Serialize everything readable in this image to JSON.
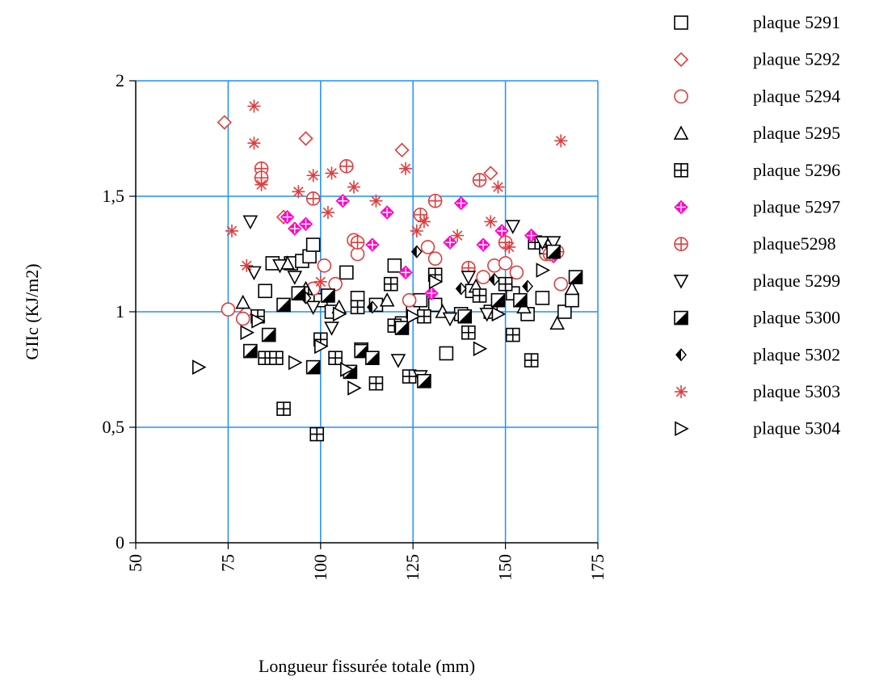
{
  "chart_data": {
    "type": "scatter",
    "xlabel": "Longueur fissurée totale (mm)",
    "ylabel": "GIIc (KJ/m2)",
    "xlim": [
      50,
      175
    ],
    "ylim": [
      0,
      2
    ],
    "xticks": [
      50,
      75,
      100,
      125,
      150,
      175
    ],
    "yticks": [
      0,
      0.5,
      1,
      1.5,
      2
    ],
    "x_tick_labels": [
      "50",
      "75",
      "100",
      "125",
      "150",
      "175"
    ],
    "y_tick_labels": [
      "0",
      "0,5",
      "1",
      "1,5",
      "2"
    ],
    "grid": true,
    "grid_color": "#1e90ff",
    "legend_position": "right",
    "series": [
      {
        "name": "plaque 5291",
        "marker": "square",
        "color": "#000000",
        "points": [
          [
            85,
            1.09
          ],
          [
            87,
            1.21
          ],
          [
            92,
            1.21
          ],
          [
            95,
            1.22
          ],
          [
            97,
            1.24
          ],
          [
            98,
            1.29
          ],
          [
            100,
            1.05
          ],
          [
            103,
            1.0
          ],
          [
            107,
            1.17
          ],
          [
            110,
            1.06
          ],
          [
            115,
            1.03
          ],
          [
            120,
            1.2
          ],
          [
            122,
            0.95
          ],
          [
            125,
            1.0
          ],
          [
            127,
            1.05
          ],
          [
            131,
            1.03
          ],
          [
            134,
            0.82
          ],
          [
            138,
            0.99
          ],
          [
            141,
            1.09
          ],
          [
            146,
            1.0
          ],
          [
            152,
            1.08
          ],
          [
            156,
            0.99
          ],
          [
            160,
            1.06
          ],
          [
            166,
            1.0
          ],
          [
            168,
            1.05
          ]
        ]
      },
      {
        "name": "plaque 5292",
        "marker": "diamond",
        "color": "#e03c3c",
        "points": [
          [
            74,
            1.82
          ],
          [
            96,
            1.75
          ],
          [
            122,
            1.7
          ],
          [
            146,
            1.6
          ],
          [
            80,
            1.0
          ],
          [
            90,
            1.41
          ]
        ]
      },
      {
        "name": "plaque 5294",
        "marker": "circle",
        "color": "#e03c3c",
        "points": [
          [
            75,
            1.01
          ],
          [
            79,
            0.97
          ],
          [
            98,
            1.1
          ],
          [
            101,
            1.2
          ],
          [
            104,
            1.12
          ],
          [
            109,
            1.31
          ],
          [
            110,
            1.25
          ],
          [
            124,
            1.05
          ],
          [
            129,
            1.28
          ],
          [
            131,
            1.23
          ],
          [
            144,
            1.15
          ],
          [
            147,
            1.2
          ],
          [
            150,
            1.21
          ],
          [
            153,
            1.17
          ],
          [
            161,
            1.25
          ],
          [
            165,
            1.12
          ]
        ]
      },
      {
        "name": "plaque 5295",
        "marker": "triangle-up",
        "color": "#000000",
        "points": [
          [
            79,
            1.04
          ],
          [
            91,
            1.21
          ],
          [
            96,
            1.1
          ],
          [
            105,
            1.02
          ],
          [
            118,
            1.05
          ],
          [
            133,
            1.0
          ],
          [
            142,
            1.11
          ],
          [
            155,
            1.02
          ],
          [
            164,
            0.95
          ],
          [
            168,
            1.1
          ]
        ]
      },
      {
        "name": "plaque 5296",
        "marker": "square-cross",
        "color": "#000000",
        "points": [
          [
            83,
            0.98
          ],
          [
            85,
            0.8
          ],
          [
            88,
            0.8
          ],
          [
            90,
            0.58
          ],
          [
            95,
            1.08
          ],
          [
            99,
            0.47
          ],
          [
            100,
            0.88
          ],
          [
            104,
            0.8
          ],
          [
            110,
            1.02
          ],
          [
            115,
            0.69
          ],
          [
            119,
            1.12
          ],
          [
            120,
            0.94
          ],
          [
            124,
            0.72
          ],
          [
            128,
            0.98
          ],
          [
            131,
            1.16
          ],
          [
            140,
            0.91
          ],
          [
            143,
            1.07
          ],
          [
            150,
            1.12
          ],
          [
            152,
            0.9
          ],
          [
            157,
            0.79
          ],
          [
            158,
            1.3
          ],
          [
            161,
            1.28
          ]
        ]
      },
      {
        "name": "plaque 5297",
        "marker": "diamond-cross",
        "color": "#ff00cc",
        "points": [
          [
            91,
            1.41
          ],
          [
            93,
            1.36
          ],
          [
            96,
            1.38
          ],
          [
            106,
            1.48
          ],
          [
            114,
            1.29
          ],
          [
            118,
            1.43
          ],
          [
            123,
            1.17
          ],
          [
            130,
            1.08
          ],
          [
            135,
            1.3
          ],
          [
            138,
            1.47
          ],
          [
            144,
            1.29
          ],
          [
            149,
            1.35
          ],
          [
            157,
            1.33
          ],
          [
            163,
            1.24
          ]
        ]
      },
      {
        "name": "plaque5298",
        "marker": "circle-cross",
        "color": "#e03c3c",
        "points": [
          [
            84,
            1.62
          ],
          [
            84,
            1.58
          ],
          [
            98,
            1.49
          ],
          [
            107,
            1.63
          ],
          [
            110,
            1.3
          ],
          [
            127,
            1.42
          ],
          [
            131,
            1.48
          ],
          [
            140,
            1.19
          ],
          [
            143,
            1.57
          ],
          [
            150,
            1.3
          ],
          [
            162,
            1.25
          ],
          [
            164,
            1.26
          ]
        ]
      },
      {
        "name": "plaque 5299",
        "marker": "triangle-down",
        "color": "#000000",
        "points": [
          [
            81,
            1.39
          ],
          [
            82,
            1.17
          ],
          [
            89,
            1.2
          ],
          [
            93,
            1.15
          ],
          [
            98,
            1.02
          ],
          [
            103,
            0.93
          ],
          [
            111,
            0.84
          ],
          [
            121,
            0.79
          ],
          [
            127,
            0.72
          ],
          [
            135,
            0.97
          ],
          [
            140,
            1.15
          ],
          [
            145,
            0.99
          ],
          [
            152,
            1.37
          ],
          [
            160,
            1.3
          ],
          [
            163,
            1.3
          ]
        ]
      },
      {
        "name": "plaque 5300",
        "marker": "square-half",
        "color": "#000000",
        "points": [
          [
            81,
            0.83
          ],
          [
            86,
            0.9
          ],
          [
            90,
            1.03
          ],
          [
            94,
            1.08
          ],
          [
            98,
            0.76
          ],
          [
            102,
            1.07
          ],
          [
            108,
            0.74
          ],
          [
            111,
            0.83
          ],
          [
            114,
            0.8
          ],
          [
            122,
            0.93
          ],
          [
            128,
            0.7
          ],
          [
            139,
            0.98
          ],
          [
            148,
            1.05
          ],
          [
            154,
            1.05
          ],
          [
            163,
            1.26
          ],
          [
            169,
            1.15
          ]
        ]
      },
      {
        "name": "plaque 5302",
        "marker": "diamond-half",
        "color": "#000000",
        "points": [
          [
            96,
            1.06
          ],
          [
            114,
            1.02
          ],
          [
            126,
            1.26
          ],
          [
            138,
            1.1
          ],
          [
            147,
            1.14
          ],
          [
            156,
            1.11
          ]
        ]
      },
      {
        "name": "plaque 5303",
        "marker": "asterisk",
        "color": "#e03c3c",
        "points": [
          [
            76,
            1.35
          ],
          [
            80,
            1.2
          ],
          [
            82,
            1.89
          ],
          [
            82,
            1.73
          ],
          [
            84,
            1.55
          ],
          [
            94,
            1.52
          ],
          [
            98,
            1.59
          ],
          [
            100,
            1.13
          ],
          [
            102,
            1.43
          ],
          [
            103,
            1.6
          ],
          [
            109,
            1.54
          ],
          [
            115,
            1.48
          ],
          [
            123,
            1.62
          ],
          [
            126,
            1.35
          ],
          [
            128,
            1.39
          ],
          [
            137,
            1.33
          ],
          [
            146,
            1.39
          ],
          [
            148,
            1.54
          ],
          [
            151,
            1.28
          ],
          [
            165,
            1.74
          ]
        ]
      },
      {
        "name": "plaque 5304",
        "marker": "triangle-right",
        "color": "#000000",
        "points": [
          [
            67,
            0.76
          ],
          [
            80,
            0.91
          ],
          [
            83,
            0.96
          ],
          [
            93,
            0.78
          ],
          [
            100,
            0.85
          ],
          [
            105,
            0.99
          ],
          [
            107,
            0.75
          ],
          [
            109,
            0.67
          ],
          [
            125,
            0.98
          ],
          [
            131,
            1.13
          ],
          [
            143,
            0.84
          ],
          [
            148,
            0.99
          ],
          [
            160,
            1.18
          ]
        ]
      }
    ]
  }
}
